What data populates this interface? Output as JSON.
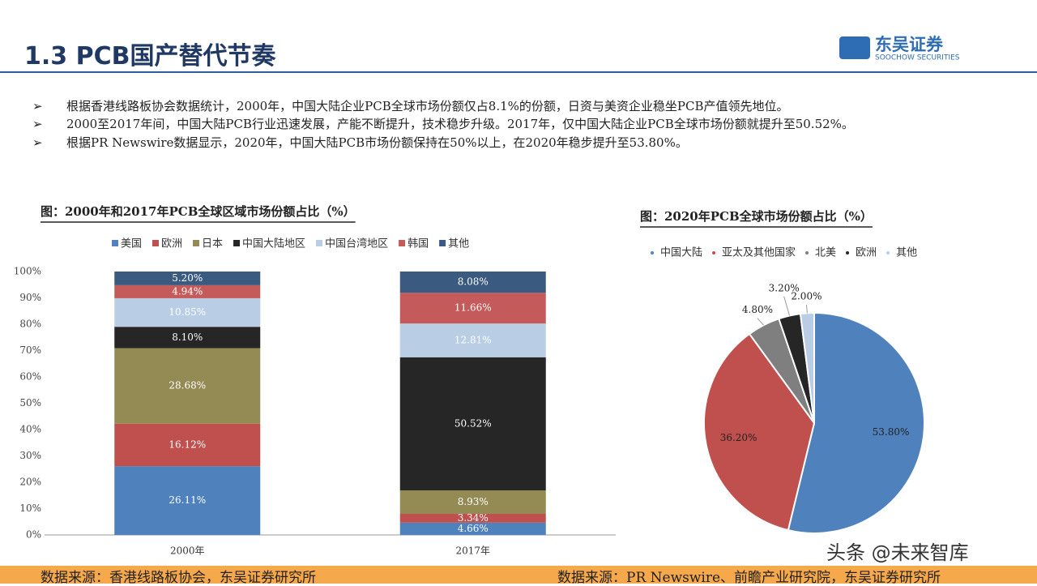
{
  "header": {
    "title": "1.3 PCB国产替代节奏",
    "logo_cn": "东吴证券",
    "logo_en": "SOOCHOW SECURITIES"
  },
  "bullets": [
    "根据香港线路板协会数据统计，2000年，中国大陆企业PCB全球市场份额仅占8.1%的份额，日资与美资企业稳坐PCB产值领先地位。",
    "2000至2017年间，中国大陆PCB行业迅速发展，产能不断提升，技术稳步升级。2017年，仅中国大陆企业PCB全球市场份额就提升至50.52%。",
    "根据PR Newswire数据显示，2020年，中国大陆PCB市场份额保持在50%以上，在2020年稳步提升至53.80%。"
  ],
  "chart_data": [
    {
      "type": "stacked_bar",
      "title": "图：2000年和2017年PCB全球区域市场份额占比（%）",
      "categories": [
        "2000年",
        "2017年"
      ],
      "series": [
        {
          "name": "美国",
          "color": "#4f81bd",
          "values": [
            26.11,
            4.66
          ],
          "value_labels": [
            "26.11%",
            "4.66%"
          ]
        },
        {
          "name": "欧洲",
          "color": "#c0504d",
          "values": [
            16.12,
            3.34
          ],
          "value_labels": [
            "16.12%",
            "3.34%"
          ]
        },
        {
          "name": "日本",
          "color": "#948a54",
          "values": [
            28.68,
            8.93
          ],
          "value_labels": [
            "28.68%",
            "8.93%"
          ]
        },
        {
          "name": "中国大陆地区",
          "color": "#262626",
          "values": [
            8.1,
            50.52
          ],
          "value_labels": [
            "8.10%",
            "50.52%"
          ]
        },
        {
          "name": "中国台湾地区",
          "color": "#b9cde5",
          "values": [
            10.85,
            12.81
          ],
          "value_labels": [
            "10.85%",
            "12.81%"
          ]
        },
        {
          "name": "韩国",
          "color": "#c55a5a",
          "values": [
            4.94,
            11.66
          ],
          "value_labels": [
            "4.94%",
            "11.66%"
          ]
        },
        {
          "name": "其他",
          "color": "#3b5a80",
          "values": [
            5.2,
            8.08
          ],
          "value_labels": [
            "5.20%",
            "8.08%"
          ]
        }
      ],
      "ylim": [
        0,
        100
      ],
      "yticks": [
        {
          "value": 0,
          "label": "0%"
        },
        {
          "value": 10,
          "label": "10%"
        },
        {
          "value": 20,
          "label": "20%"
        },
        {
          "value": 30,
          "label": "30%"
        },
        {
          "value": 40,
          "label": "40%"
        },
        {
          "value": 50,
          "label": "50%"
        },
        {
          "value": 60,
          "label": "60%"
        },
        {
          "value": 70,
          "label": "70%"
        },
        {
          "value": 80,
          "label": "80%"
        },
        {
          "value": 90,
          "label": "90%"
        },
        {
          "value": 100,
          "label": "100%"
        }
      ],
      "legend": "top"
    },
    {
      "type": "pie",
      "title": "图：2020年PCB全球市场份额占比（%）",
      "categories": [
        "中国大陆",
        "亚太及其他国家",
        "北美",
        "欧洲",
        "其他"
      ],
      "values": [
        53.8,
        36.2,
        4.8,
        3.2,
        2.0
      ],
      "value_labels": [
        "53.80%",
        "36.20%",
        "4.80%",
        "3.20%",
        "2.00%"
      ],
      "colors": [
        "#4f81bd",
        "#c0504d",
        "#7f7f7f",
        "#262626",
        "#b9cde5"
      ],
      "legend": "top"
    }
  ],
  "sources": [
    "数据来源：香港线路板协会，东吴证券研究所",
    "数据来源：PR Newswire、前瞻产业研究院，东吴证券研究所"
  ],
  "watermark": "头条 @未来智库"
}
